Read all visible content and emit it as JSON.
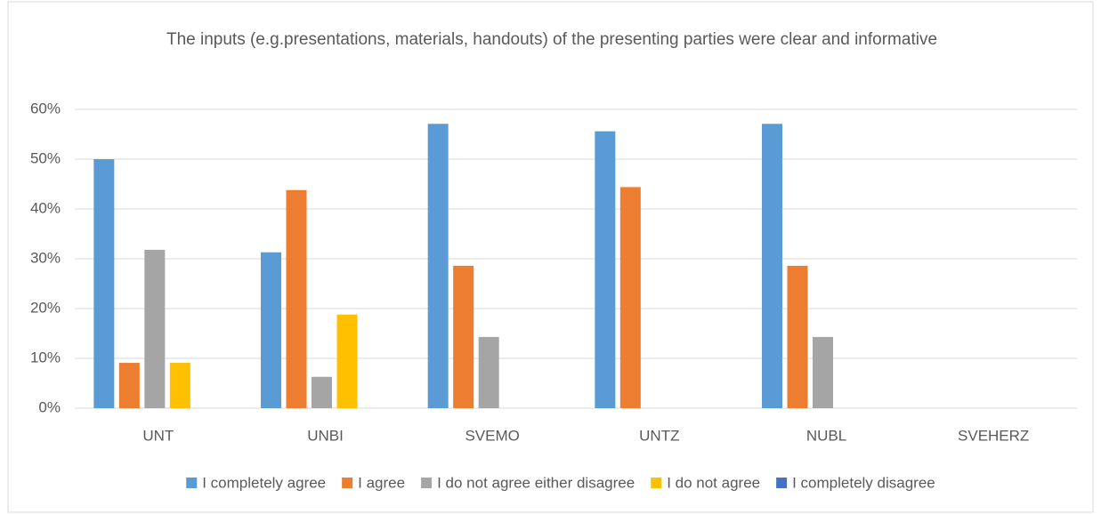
{
  "chart_data": {
    "type": "bar",
    "title": "The inputs (e.g.presentations, materials, handouts) of the presenting parties were clear and informative",
    "categories": [
      "UNT",
      "UNBI",
      "SVEMO",
      "UNTZ",
      "NUBL",
      "SVEHERZ"
    ],
    "series": [
      {
        "name": "I completely agree",
        "color": "#5b9bd5",
        "values": [
          50,
          31.3,
          57.1,
          55.6,
          57.1,
          0
        ]
      },
      {
        "name": "I agree",
        "color": "#ed7d31",
        "values": [
          9.1,
          43.8,
          28.6,
          44.4,
          28.6,
          0
        ]
      },
      {
        "name": "I do not agree either disagree",
        "color": "#a5a5a5",
        "values": [
          31.8,
          6.3,
          14.3,
          0,
          14.3,
          0
        ]
      },
      {
        "name": "I do not agree",
        "color": "#ffc000",
        "values": [
          9.1,
          18.8,
          0,
          0,
          0,
          0
        ]
      },
      {
        "name": "I completely disagree",
        "color": "#4472c4",
        "values": [
          0,
          0,
          0,
          0,
          0,
          0
        ]
      }
    ],
    "ylim": [
      0,
      60
    ],
    "yticks": [
      {
        "value": 0,
        "label": "0%"
      },
      {
        "value": 10,
        "label": "10%"
      },
      {
        "value": 20,
        "label": "20%"
      },
      {
        "value": 30,
        "label": "30%"
      },
      {
        "value": 40,
        "label": "40%"
      },
      {
        "value": 50,
        "label": "50%"
      },
      {
        "value": 60,
        "label": "60%"
      }
    ],
    "grid": true,
    "legend": "bottom"
  }
}
